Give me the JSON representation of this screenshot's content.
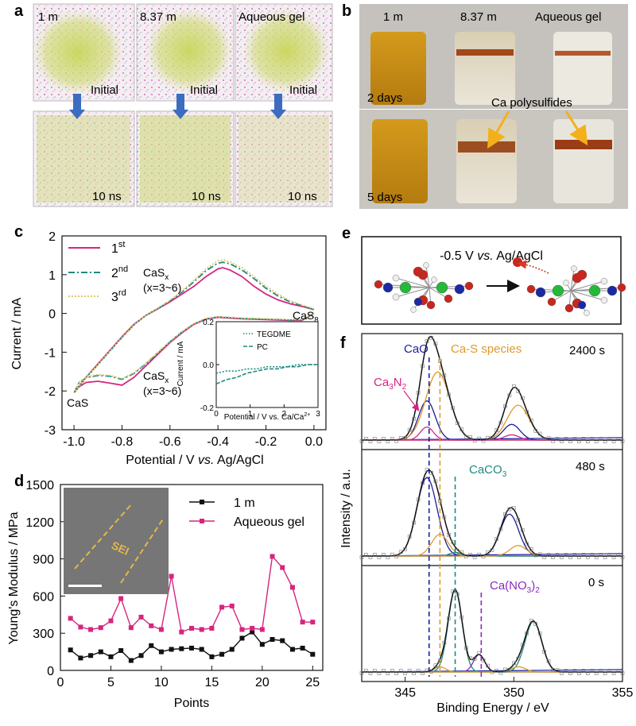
{
  "panels": {
    "a": {
      "letter": "a",
      "tiles": [
        {
          "label": "1 m",
          "state": "Initial"
        },
        {
          "label": "8.37 m",
          "state": "Initial"
        },
        {
          "label": "Aqueous gel",
          "state": "Initial"
        },
        {
          "label": "",
          "state": "10 ns"
        },
        {
          "label": "",
          "state": "10 ns"
        },
        {
          "label": "",
          "state": "10 ns"
        }
      ]
    },
    "b": {
      "letter": "b",
      "vials": [
        "1 m",
        "8.37 m",
        "Aqueous gel"
      ],
      "time_top": "2 days",
      "time_bottom": "5 days",
      "annotation": "Ca polysulfides"
    },
    "c": {
      "letter": "c"
    },
    "d": {
      "letter": "d",
      "inset_label": "SEI"
    },
    "e": {
      "letter": "e",
      "condition_prefix": "-0.5 V ",
      "condition_italic": "vs.",
      "condition_suffix": " Ag/AgCl"
    },
    "f": {
      "letter": "f"
    }
  },
  "colors": {
    "magenta": "#d6257f",
    "teal": "#1f8a80",
    "gold": "#e1c86a",
    "black": "#111111",
    "navy": "#1b1f9c",
    "orange": "#de9a2e",
    "purple": "#8a2bbd",
    "arrow_blue": "#3b6cc0",
    "arrow_orange": "#f3b01b"
  },
  "chart_data": [
    {
      "type": "line",
      "panel": "c",
      "xlabel_prefix": "Potential / V ",
      "xlabel_italic": "vs.",
      "xlabel_suffix": " Ag/AgCl",
      "ylabel": "Current / mA",
      "xlim": [
        -1.05,
        0.05
      ],
      "ylim": [
        -3,
        2
      ],
      "xticks": [
        "-1.0",
        "-0.8",
        "-0.6",
        "-0.4",
        "-0.2",
        "0.0"
      ],
      "yticks": [
        "-3",
        "-2",
        "-1",
        "0",
        "1",
        "2"
      ],
      "legend": [
        "1st",
        "2nd",
        "3rd"
      ],
      "annotations": [
        "CaSx",
        "(x=3~6)",
        "CaS8",
        "CaSx",
        "(x=3~6)",
        "CaS"
      ],
      "series": [
        {
          "name": "1st",
          "color": "#d6257f",
          "dash": "solid",
          "x": [
            0.0,
            -0.05,
            -0.1,
            -0.15,
            -0.2,
            -0.25,
            -0.3,
            -0.35,
            -0.38,
            -0.4,
            -0.45,
            -0.5,
            -0.55,
            -0.6,
            -0.65,
            -0.7,
            -0.75,
            -0.8,
            -0.85,
            -0.9,
            -0.95,
            -1.0,
            -0.98,
            -0.95,
            -0.9,
            -0.85,
            -0.8,
            -0.75,
            -0.7,
            -0.65,
            -0.6,
            -0.55,
            -0.5,
            -0.45,
            -0.4,
            -0.35,
            -0.3,
            -0.25,
            -0.2,
            -0.15,
            -0.1,
            -0.05,
            0.0
          ],
          "y": [
            0.1,
            0.18,
            0.25,
            0.35,
            0.5,
            0.7,
            0.95,
            1.12,
            1.18,
            1.15,
            0.95,
            0.7,
            0.5,
            0.3,
            0.12,
            -0.05,
            -0.28,
            -0.6,
            -0.95,
            -1.3,
            -1.65,
            -2.05,
            -1.9,
            -1.78,
            -1.75,
            -1.8,
            -1.85,
            -1.65,
            -1.35,
            -1.05,
            -0.75,
            -0.5,
            -0.28,
            -0.15,
            -0.1,
            -0.12,
            -0.14,
            -0.15,
            -0.16,
            -0.17,
            -0.18,
            -0.18,
            0.0
          ]
        },
        {
          "name": "2nd",
          "color": "#1f8a80",
          "dash": "dashdot",
          "x": [
            0.0,
            -0.05,
            -0.1,
            -0.15,
            -0.2,
            -0.25,
            -0.3,
            -0.35,
            -0.38,
            -0.4,
            -0.45,
            -0.5,
            -0.55,
            -0.6,
            -0.65,
            -0.7,
            -0.75,
            -0.8,
            -0.85,
            -0.9,
            -0.95,
            -1.0,
            -0.98,
            -0.95,
            -0.9,
            -0.85,
            -0.8,
            -0.75,
            -0.7,
            -0.65,
            -0.6,
            -0.55,
            -0.5,
            -0.45,
            -0.4,
            -0.35,
            -0.3,
            -0.25,
            -0.2,
            -0.15,
            -0.1,
            -0.05,
            0.0
          ],
          "y": [
            0.1,
            0.2,
            0.3,
            0.45,
            0.65,
            0.9,
            1.12,
            1.28,
            1.32,
            1.3,
            1.1,
            0.82,
            0.55,
            0.32,
            0.13,
            -0.05,
            -0.3,
            -0.62,
            -0.97,
            -1.32,
            -1.66,
            -2.05,
            -1.8,
            -1.66,
            -1.6,
            -1.62,
            -1.7,
            -1.55,
            -1.3,
            -1.02,
            -0.73,
            -0.48,
            -0.27,
            -0.14,
            -0.09,
            -0.11,
            -0.13,
            -0.14,
            -0.15,
            -0.16,
            -0.17,
            -0.17,
            0.0
          ]
        },
        {
          "name": "3rd",
          "color": "#e1c86a",
          "dash": "dotted",
          "x": [
            0.0,
            -0.05,
            -0.1,
            -0.15,
            -0.2,
            -0.25,
            -0.3,
            -0.35,
            -0.38,
            -0.4,
            -0.45,
            -0.5,
            -0.55,
            -0.6,
            -0.65,
            -0.7,
            -0.75,
            -0.8,
            -0.85,
            -0.9,
            -0.95,
            -1.0,
            -0.98,
            -0.95,
            -0.9,
            -0.85,
            -0.8,
            -0.75,
            -0.7,
            -0.65,
            -0.6,
            -0.55,
            -0.5,
            -0.45,
            -0.4,
            -0.35,
            -0.3,
            -0.25,
            -0.2,
            -0.15,
            -0.1,
            -0.05,
            0.0
          ],
          "y": [
            0.12,
            0.22,
            0.33,
            0.5,
            0.7,
            0.95,
            1.18,
            1.33,
            1.38,
            1.36,
            1.15,
            0.86,
            0.58,
            0.34,
            0.14,
            -0.04,
            -0.3,
            -0.62,
            -0.97,
            -1.32,
            -1.66,
            -2.05,
            -1.78,
            -1.64,
            -1.58,
            -1.6,
            -1.68,
            -1.53,
            -1.28,
            -1.0,
            -0.72,
            -0.47,
            -0.26,
            -0.13,
            -0.08,
            -0.1,
            -0.12,
            -0.13,
            -0.14,
            -0.15,
            -0.16,
            -0.16,
            0.0
          ]
        }
      ],
      "inset": {
        "xlabel": "Potential / V vs. Ca/Ca",
        "xlabel_sup": "2+",
        "ylabel": "Current / mA",
        "xlim": [
          0,
          3
        ],
        "ylim": [
          -0.2,
          0.2
        ],
        "xticks": [
          "0",
          "1",
          "2",
          "3"
        ],
        "yticks": [
          "-0.2",
          "0.0",
          "0.2"
        ],
        "legend": [
          "TEGDME",
          "PC"
        ],
        "series": [
          {
            "name": "TEGDME",
            "color": "#1f8a80",
            "dash": "dotted",
            "x": [
              0.0,
              0.3,
              0.6,
              0.9,
              1.2,
              1.5,
              1.8,
              2.1,
              2.4,
              2.7,
              3.0
            ],
            "y": [
              -0.04,
              -0.03,
              -0.03,
              -0.02,
              -0.02,
              -0.01,
              -0.01,
              -0.01,
              0.0,
              0.0,
              0.0
            ]
          },
          {
            "name": "PC",
            "color": "#1f8a80",
            "dash": "dashed",
            "x": [
              0.0,
              0.3,
              0.6,
              0.9,
              1.2,
              1.5,
              1.8,
              2.1,
              2.4,
              2.7,
              3.0
            ],
            "y": [
              -0.09,
              -0.07,
              -0.06,
              -0.04,
              -0.03,
              -0.02,
              -0.02,
              -0.01,
              -0.01,
              0.0,
              0.0
            ]
          }
        ]
      }
    },
    {
      "type": "line",
      "panel": "d",
      "xlabel": "Points",
      "ylabel": "Young's Modulus / MPa",
      "xlim": [
        0,
        26
      ],
      "ylim": [
        0,
        1500
      ],
      "xticks": [
        "0",
        "5",
        "10",
        "15",
        "20",
        "25"
      ],
      "yticks": [
        "0",
        "300",
        "600",
        "900",
        "1200",
        "1500"
      ],
      "x": [
        1,
        2,
        3,
        4,
        5,
        6,
        7,
        8,
        9,
        10,
        11,
        12,
        13,
        14,
        15,
        16,
        17,
        18,
        19,
        20,
        21,
        22,
        23,
        24,
        25
      ],
      "series": [
        {
          "name": "1 m",
          "color": "#111111",
          "values": [
            165,
            100,
            120,
            150,
            110,
            160,
            80,
            120,
            200,
            150,
            170,
            175,
            180,
            170,
            110,
            130,
            170,
            260,
            310,
            210,
            250,
            240,
            170,
            180,
            130
          ]
        },
        {
          "name": "Aqueous gel",
          "color": "#d6257f",
          "values": [
            420,
            350,
            330,
            345,
            400,
            580,
            345,
            430,
            360,
            330,
            760,
            310,
            340,
            330,
            340,
            510,
            520,
            330,
            340,
            330,
            920,
            830,
            670,
            390,
            390
          ]
        }
      ]
    },
    {
      "type": "line",
      "panel": "f",
      "xlabel": "Binding Energy / eV",
      "ylabel": "Intensity / a.u.",
      "xlim": [
        343,
        355
      ],
      "xticks": [
        "345",
        "350",
        "355"
      ],
      "labels_top": [
        "CaO",
        "Ca-S species",
        "Ca3N2"
      ],
      "labels_mid": [
        "CaCO3"
      ],
      "labels_bottom": [
        "Ca(NO3)2"
      ],
      "subpanels": [
        {
          "time": "2400 s",
          "peaks": [
            {
              "name": "CaO",
              "center": 346.0,
              "height": 0.45,
              "width": 0.9,
              "color": "#1b1f9c"
            },
            {
              "name": "Ca-S species",
              "center": 346.5,
              "height": 0.78,
              "width": 1.3,
              "color": "#de9a2e"
            },
            {
              "name": "Ca3N2",
              "center": 346.0,
              "height": 0.15,
              "width": 0.7,
              "color": "#d6257f"
            },
            {
              "name": "CaO",
              "center": 349.9,
              "height": 0.18,
              "width": 0.9,
              "color": "#1b1f9c"
            },
            {
              "name": "Ca-S species",
              "center": 350.2,
              "height": 0.4,
              "width": 1.2,
              "color": "#de9a2e"
            },
            {
              "name": "Ca3N2",
              "center": 349.9,
              "height": 0.06,
              "width": 0.8,
              "color": "#d6257f"
            }
          ]
        },
        {
          "time": "480 s",
          "peaks": [
            {
              "name": "CaO",
              "center": 346.0,
              "height": 0.9,
              "width": 1.1,
              "color": "#1b1f9c"
            },
            {
              "name": "Ca-S species",
              "center": 346.6,
              "height": 0.25,
              "width": 0.9,
              "color": "#de9a2e"
            },
            {
              "name": "CaCO3",
              "center": 347.3,
              "height": 0.04,
              "width": 0.6,
              "color": "#1f8a80"
            },
            {
              "name": "CaO",
              "center": 349.8,
              "height": 0.48,
              "width": 1.0,
              "color": "#1b1f9c"
            },
            {
              "name": "Ca-S species",
              "center": 350.2,
              "height": 0.12,
              "width": 0.9,
              "color": "#de9a2e"
            }
          ]
        },
        {
          "time": "0 s",
          "peaks": [
            {
              "name": "CaCO3",
              "center": 347.3,
              "height": 0.95,
              "width": 0.75,
              "color": "#1f8a80"
            },
            {
              "name": "Ca(NO3)2",
              "center": 348.4,
              "height": 0.2,
              "width": 0.6,
              "color": "#8a2bbd"
            },
            {
              "name": "Ca-S species",
              "center": 346.6,
              "height": 0.06,
              "width": 0.6,
              "color": "#de9a2e"
            },
            {
              "name": "CaCO3",
              "center": 350.9,
              "height": 0.58,
              "width": 0.9,
              "color": "#1f8a80"
            },
            {
              "name": "Ca-S species",
              "center": 350.2,
              "height": 0.06,
              "width": 0.8,
              "color": "#de9a2e"
            }
          ]
        }
      ],
      "reference_lines": [
        {
          "name": "CaO",
          "x": 346.1,
          "color": "#1b1f9c"
        },
        {
          "name": "Ca-S species",
          "x": 346.6,
          "color": "#de9a2e"
        },
        {
          "name": "CaCO3",
          "x": 347.3,
          "color": "#1f8a80"
        },
        {
          "name": "Ca(NO3)2",
          "x": 348.5,
          "color": "#8a2bbd"
        }
      ]
    }
  ]
}
